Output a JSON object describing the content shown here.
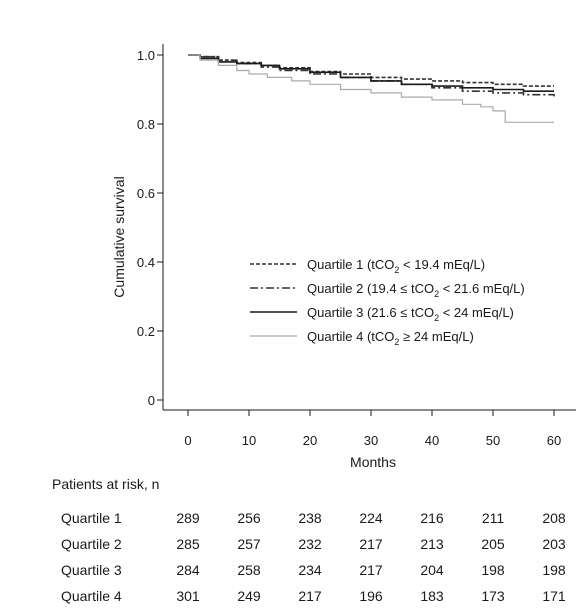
{
  "chart_data": {
    "type": "line",
    "ylabel": "Cumulative survival",
    "xlabel": "Months",
    "xlim": [
      0,
      60
    ],
    "ylim": [
      0,
      1.0
    ],
    "xticks": [
      "0",
      "10",
      "20",
      "30",
      "40",
      "50",
      "60"
    ],
    "yticks": [
      "0",
      "0.2",
      "0.4",
      "0.6",
      "0.8",
      "1.0"
    ],
    "grid": false,
    "legend_position": "center-right",
    "series": [
      {
        "name": "Quartile 1 (tCO₂ < 19.4 mEq/L)",
        "legend_parts": [
          "Quartile 1 (tCO",
          "2",
          " < 19.4 mEq/L)"
        ],
        "style": "dashed",
        "color": "#333333",
        "x": [
          0,
          2,
          5,
          8,
          12,
          15,
          20,
          25,
          30,
          35,
          40,
          45,
          50,
          55,
          60
        ],
        "y": [
          1.0,
          0.995,
          0.985,
          0.978,
          0.97,
          0.963,
          0.952,
          0.945,
          0.935,
          0.93,
          0.925,
          0.92,
          0.915,
          0.91,
          0.91
        ]
      },
      {
        "name": "Quartile 2 (19.4 ≤ tCO₂ < 21.6 mEq/L)",
        "legend_parts": [
          "Quartile 2 (19.4 ≤ tCO",
          "2",
          " < 21.6 mEq/L)"
        ],
        "style": "dashdot",
        "color": "#333333",
        "x": [
          0,
          2,
          5,
          8,
          12,
          15,
          20,
          25,
          30,
          35,
          40,
          45,
          50,
          55,
          60
        ],
        "y": [
          1.0,
          0.995,
          0.985,
          0.975,
          0.965,
          0.955,
          0.945,
          0.935,
          0.925,
          0.915,
          0.905,
          0.895,
          0.89,
          0.885,
          0.88
        ]
      },
      {
        "name": "Quartile 3 (21.6 ≤ tCO₂ < 24 mEq/L)",
        "legend_parts": [
          "Quartile 3 (21.6 ≤ tCO",
          "2",
          " < 24 mEq/L)"
        ],
        "style": "solid",
        "color": "#1a1a1a",
        "x": [
          0,
          2,
          5,
          8,
          12,
          15,
          20,
          25,
          30,
          35,
          40,
          45,
          50,
          55,
          60
        ],
        "y": [
          1.0,
          0.99,
          0.98,
          0.975,
          0.97,
          0.96,
          0.95,
          0.935,
          0.925,
          0.915,
          0.91,
          0.905,
          0.9,
          0.895,
          0.895
        ]
      },
      {
        "name": "Quartile 4 (tCO₂ ≥ 24 mEq/L)",
        "legend_parts": [
          "Quartile 4 (tCO",
          "2",
          " ≥ 24 mEq/L)"
        ],
        "style": "solid",
        "color": "#aaaaaa",
        "x": [
          0,
          2,
          5,
          8,
          10,
          13,
          17,
          20,
          25,
          30,
          35,
          40,
          45,
          48,
          50,
          52,
          55,
          60
        ],
        "y": [
          1.0,
          0.985,
          0.97,
          0.955,
          0.945,
          0.935,
          0.925,
          0.915,
          0.9,
          0.89,
          0.878,
          0.87,
          0.857,
          0.85,
          0.838,
          0.805,
          0.805,
          0.805
        ]
      }
    ]
  },
  "risk_table": {
    "title": "Patients at risk, n",
    "columns": [
      0,
      10,
      20,
      30,
      40,
      50,
      60
    ],
    "rows": [
      {
        "label": "Quartile 1",
        "values": [
          "289",
          "256",
          "238",
          "224",
          "216",
          "211",
          "208"
        ]
      },
      {
        "label": "Quartile 2",
        "values": [
          "285",
          "257",
          "232",
          "217",
          "213",
          "205",
          "203"
        ]
      },
      {
        "label": "Quartile 3",
        "values": [
          "284",
          "258",
          "234",
          "217",
          "204",
          "198",
          "198"
        ]
      },
      {
        "label": "Quartile 4",
        "values": [
          "301",
          "249",
          "217",
          "196",
          "183",
          "173",
          "171"
        ]
      }
    ]
  }
}
